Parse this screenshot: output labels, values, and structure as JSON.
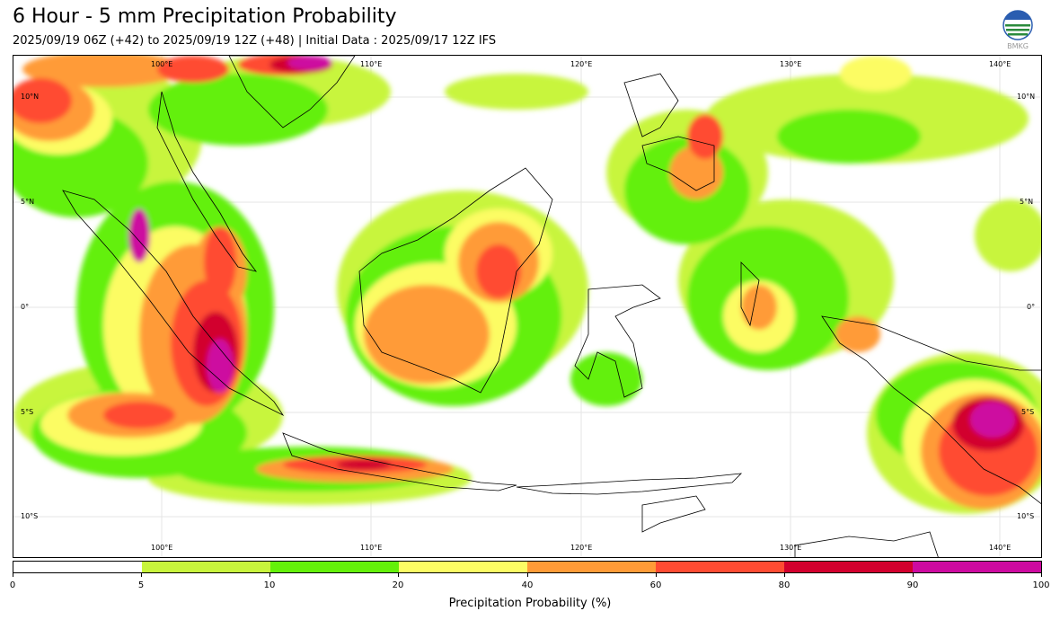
{
  "title": "6 Hour - 5 mm Precipitation Probability",
  "subtitle": "2025/09/19 06Z (+42) to 2025/09/19 12Z (+48) | Initial Data : 2025/09/17 12Z IFS",
  "logo_text": "BMKG",
  "map": {
    "lon_ticks": [
      "100°E",
      "110°E",
      "120°E",
      "130°E",
      "140°E"
    ],
    "lat_ticks": [
      "10°N",
      "5°N",
      "0°",
      "5°S",
      "10°S"
    ]
  },
  "colorbar": {
    "label": "Precipitation Probability (%)",
    "ticks": [
      "0",
      "5",
      "10",
      "20",
      "40",
      "60",
      "80",
      "90",
      "100"
    ],
    "colors": [
      "#ffffff",
      "#c8f53c",
      "#64f00a",
      "#fcfc64",
      "#ff9b37",
      "#ff4b32",
      "#d2002d",
      "#cd0aa0"
    ]
  }
}
